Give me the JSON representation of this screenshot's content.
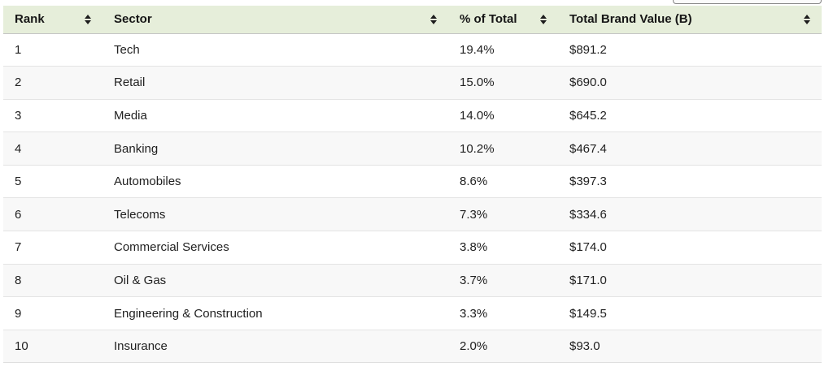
{
  "search": {
    "value": ""
  },
  "table": {
    "columns": [
      {
        "label": "Rank"
      },
      {
        "label": "Sector"
      },
      {
        "label": "% of Total"
      },
      {
        "label": "Total Brand Value (B)"
      }
    ],
    "rows": [
      {
        "rank": "1",
        "sector": "Tech",
        "pct": "19.4%",
        "value": "$891.2"
      },
      {
        "rank": "2",
        "sector": "Retail",
        "pct": "15.0%",
        "value": "$690.0"
      },
      {
        "rank": "3",
        "sector": "Media",
        "pct": "14.0%",
        "value": "$645.2"
      },
      {
        "rank": "4",
        "sector": "Banking",
        "pct": "10.2%",
        "value": "$467.4"
      },
      {
        "rank": "5",
        "sector": "Automobiles",
        "pct": "8.6%",
        "value": "$397.3"
      },
      {
        "rank": "6",
        "sector": "Telecoms",
        "pct": "7.3%",
        "value": "$334.6"
      },
      {
        "rank": "7",
        "sector": "Commercial Services",
        "pct": "3.8%",
        "value": "$174.0"
      },
      {
        "rank": "8",
        "sector": "Oil & Gas",
        "pct": "3.7%",
        "value": "$171.0"
      },
      {
        "rank": "9",
        "sector": "Engineering & Construction",
        "pct": "3.3%",
        "value": "$149.5"
      },
      {
        "rank": "10",
        "sector": "Insurance",
        "pct": "2.0%",
        "value": "$93.0"
      }
    ]
  },
  "icons": {
    "sort": "sort-arrows-icon"
  },
  "colors": {
    "header_bg": "#e6eeda",
    "stripe_bg": "#f8f8f8",
    "header_border": "#c4c4c4",
    "row_border": "#e4e4e4",
    "text": "#212121"
  }
}
